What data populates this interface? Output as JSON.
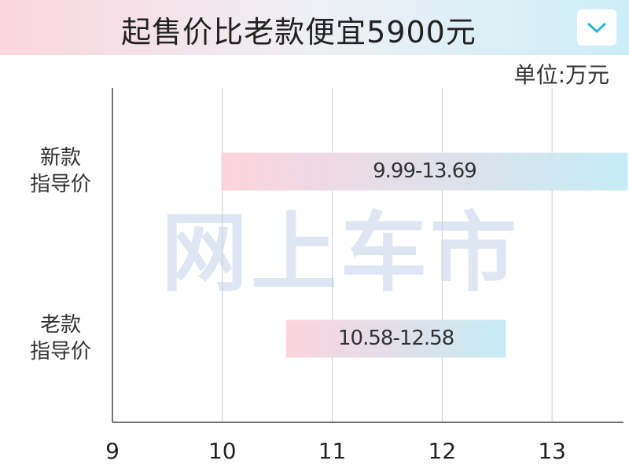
{
  "title": "起售价比老款便宜5900元",
  "chart_data": {
    "type": "range-bar",
    "unit": "单位:万元",
    "watermark": "网上车市",
    "categories": [
      [
        "新款",
        "指导价"
      ],
      [
        "老款",
        "指导价"
      ]
    ],
    "values": [
      [
        9.99,
        13.69
      ],
      [
        10.58,
        12.58
      ]
    ],
    "value_labels": [
      "9.99-13.69",
      "10.58-12.58"
    ],
    "colors": [
      "#fcd3dd",
      "#c6ecf6"
    ],
    "xlim": [
      9,
      13.65
    ],
    "xticks": [
      9,
      10,
      11,
      12,
      13
    ],
    "grid": true
  }
}
